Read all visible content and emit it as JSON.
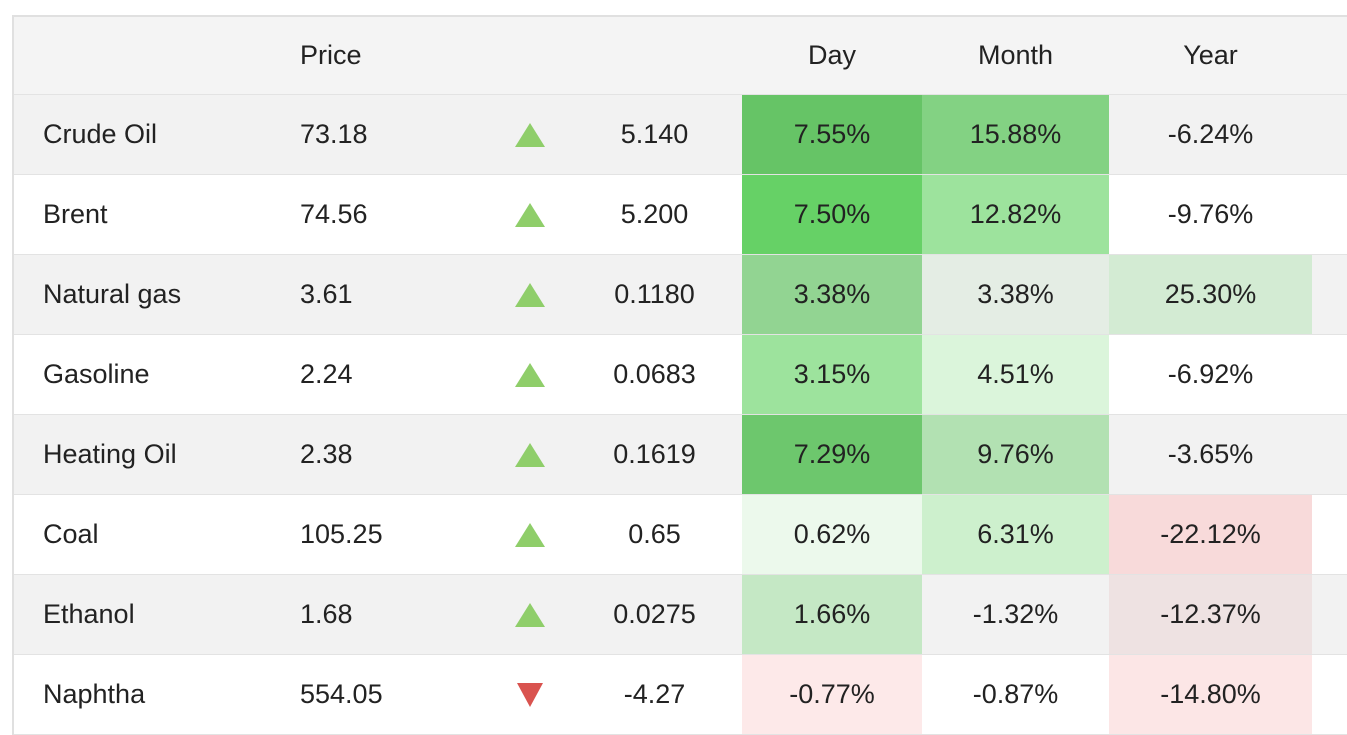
{
  "header": {
    "name_label": "",
    "price_label": "Price",
    "change_label": "",
    "day_label": "Day",
    "month_label": "Month",
    "year_label": "Year"
  },
  "rows": [
    {
      "name": "Crude Oil",
      "price": "73.18",
      "direction": "up",
      "change": "5.140",
      "day": "7.55%",
      "month": "15.88%",
      "year": "-6.24%",
      "day_color": "#66c466",
      "month_color": "#83d283",
      "year_color": "transparent"
    },
    {
      "name": "Brent",
      "price": "74.56",
      "direction": "up",
      "change": "5.200",
      "day": "7.50%",
      "month": "12.82%",
      "year": "-9.76%",
      "day_color": "#66d166",
      "month_color": "#9de39d",
      "year_color": "transparent"
    },
    {
      "name": "Natural gas",
      "price": "3.61",
      "direction": "up",
      "change": "0.1180",
      "day": "3.38%",
      "month": "3.38%",
      "year": "25.30%",
      "day_color": "#92d492",
      "month_color": "#e4ede4",
      "year_color": "#d3ebd3"
    },
    {
      "name": "Gasoline",
      "price": "2.24",
      "direction": "up",
      "change": "0.0683",
      "day": "3.15%",
      "month": "4.51%",
      "year": "-6.92%",
      "day_color": "#9de39d",
      "month_color": "#dbf5db",
      "year_color": "transparent"
    },
    {
      "name": "Heating Oil",
      "price": "2.38",
      "direction": "up",
      "change": "0.1619",
      "day": "7.29%",
      "month": "9.76%",
      "year": "-3.65%",
      "day_color": "#6dc76d",
      "month_color": "#b2e1b2",
      "year_color": "transparent"
    },
    {
      "name": "Coal",
      "price": "105.25",
      "direction": "up",
      "change": "0.65",
      "day": "0.62%",
      "month": "6.31%",
      "year": "-22.12%",
      "day_color": "#ecf9ec",
      "month_color": "#cdf0cd",
      "year_color": "#f8dada"
    },
    {
      "name": "Ethanol",
      "price": "1.68",
      "direction": "up",
      "change": "0.0275",
      "day": "1.66%",
      "month": "-1.32%",
      "year": "-12.37%",
      "day_color": "#c5e8c5",
      "month_color": "transparent",
      "year_color": "#eee2e2"
    },
    {
      "name": "Naphtha",
      "price": "554.05",
      "direction": "down",
      "change": "-4.27",
      "day": "-0.77%",
      "month": "-0.87%",
      "year": "-14.80%",
      "day_color": "#fde9e9",
      "month_color": "transparent",
      "year_color": "#fce6e6"
    }
  ],
  "colors": {
    "up_arrow": "#8fce6a",
    "down_arrow": "#d9534f"
  }
}
